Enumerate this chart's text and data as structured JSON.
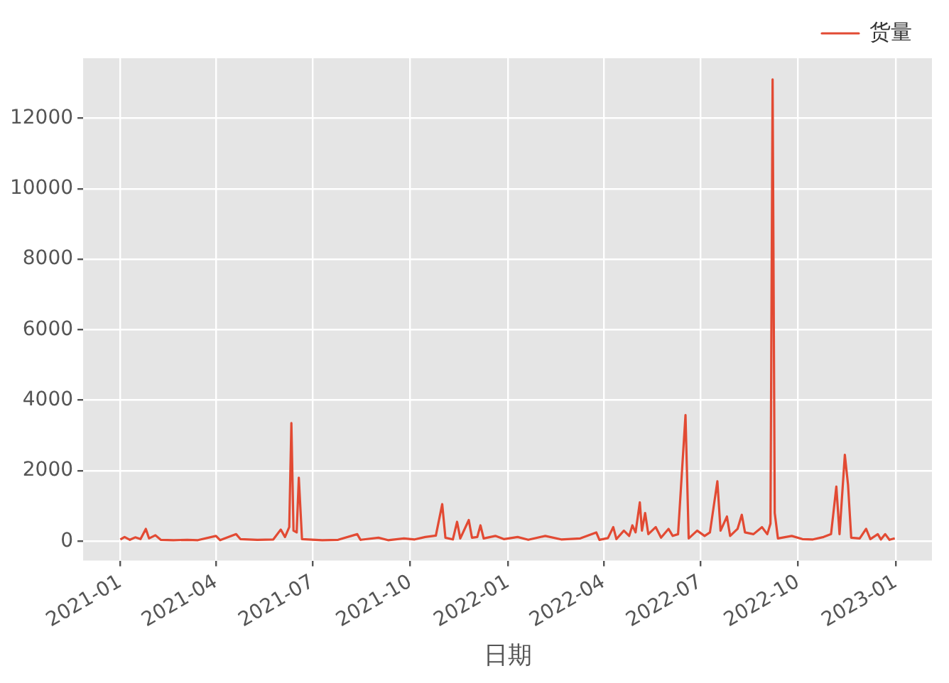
{
  "chart_data": {
    "type": "line",
    "xlabel": "日期",
    "legend": "top right",
    "grid": true,
    "marker": "none",
    "line_style": "solid",
    "xlim": [
      "2020-11-27",
      "2023-02-04"
    ],
    "xticks": [
      "2021-01",
      "2021-04",
      "2021-07",
      "2021-10",
      "2022-01",
      "2022-04",
      "2022-07",
      "2022-10",
      "2023-01"
    ],
    "ylim": [
      -550,
      13700
    ],
    "yticks": [
      0,
      2000,
      4000,
      6000,
      8000,
      10000,
      12000
    ],
    "x": [
      "2021-01-01",
      "2021-01-05",
      "2021-01-10",
      "2021-01-15",
      "2021-01-20",
      "2021-01-25",
      "2021-01-28",
      "2021-02-03",
      "2021-02-08",
      "2021-02-20",
      "2021-03-05",
      "2021-03-15",
      "2021-04-01",
      "2021-04-05",
      "2021-04-20",
      "2021-04-24",
      "2021-05-10",
      "2021-05-25",
      "2021-06-01",
      "2021-06-05",
      "2021-06-09",
      "2021-06-11",
      "2021-06-13",
      "2021-06-16",
      "2021-06-18",
      "2021-06-21",
      "2021-07-10",
      "2021-07-25",
      "2021-08-12",
      "2021-08-15",
      "2021-09-01",
      "2021-09-10",
      "2021-09-25",
      "2021-10-05",
      "2021-10-15",
      "2021-10-25",
      "2021-10-31",
      "2021-11-03",
      "2021-11-10",
      "2021-11-14",
      "2021-11-17",
      "2021-11-25",
      "2021-11-28",
      "2021-12-03",
      "2021-12-06",
      "2021-12-09",
      "2021-12-20",
      "2021-12-28",
      "2022-01-10",
      "2022-01-20",
      "2022-02-05",
      "2022-02-20",
      "2022-03-10",
      "2022-03-25",
      "2022-03-28",
      "2022-04-05",
      "2022-04-10",
      "2022-04-13",
      "2022-04-20",
      "2022-04-25",
      "2022-04-28",
      "2022-05-01",
      "2022-05-05",
      "2022-05-07",
      "2022-05-10",
      "2022-05-13",
      "2022-05-20",
      "2022-05-25",
      "2022-06-01",
      "2022-06-05",
      "2022-06-10",
      "2022-06-17",
      "2022-06-20",
      "2022-06-28",
      "2022-07-05",
      "2022-07-10",
      "2022-07-17",
      "2022-07-20",
      "2022-07-26",
      "2022-07-29",
      "2022-08-05",
      "2022-08-09",
      "2022-08-12",
      "2022-08-20",
      "2022-08-28",
      "2022-09-02",
      "2022-09-05",
      "2022-09-07",
      "2022-09-09",
      "2022-09-12",
      "2022-09-25",
      "2022-10-05",
      "2022-10-15",
      "2022-10-25",
      "2022-11-01",
      "2022-11-06",
      "2022-11-09",
      "2022-11-14",
      "2022-11-17",
      "2022-11-20",
      "2022-11-28",
      "2022-12-04",
      "2022-12-08",
      "2022-12-15",
      "2022-12-18",
      "2022-12-22",
      "2022-12-26",
      "2022-12-31"
    ],
    "series": [
      {
        "name": "货量",
        "color": "#e24a33",
        "values": [
          50,
          120,
          40,
          110,
          60,
          350,
          80,
          170,
          40,
          30,
          40,
          30,
          150,
          30,
          200,
          60,
          40,
          50,
          330,
          120,
          400,
          3350,
          300,
          250,
          1800,
          60,
          30,
          40,
          200,
          40,
          100,
          30,
          80,
          50,
          120,
          160,
          1050,
          100,
          50,
          550,
          80,
          600,
          100,
          120,
          450,
          80,
          150,
          60,
          120,
          40,
          150,
          50,
          80,
          250,
          40,
          90,
          400,
          60,
          300,
          150,
          450,
          250,
          1100,
          300,
          800,
          200,
          400,
          100,
          350,
          150,
          200,
          3580,
          80,
          300,
          150,
          250,
          1700,
          300,
          700,
          150,
          350,
          750,
          250,
          200,
          400,
          200,
          500,
          13100,
          800,
          80,
          150,
          60,
          50,
          120,
          200,
          1550,
          200,
          2450,
          1600,
          100,
          80,
          350,
          60,
          200,
          50,
          200,
          40,
          80
        ]
      }
    ]
  }
}
